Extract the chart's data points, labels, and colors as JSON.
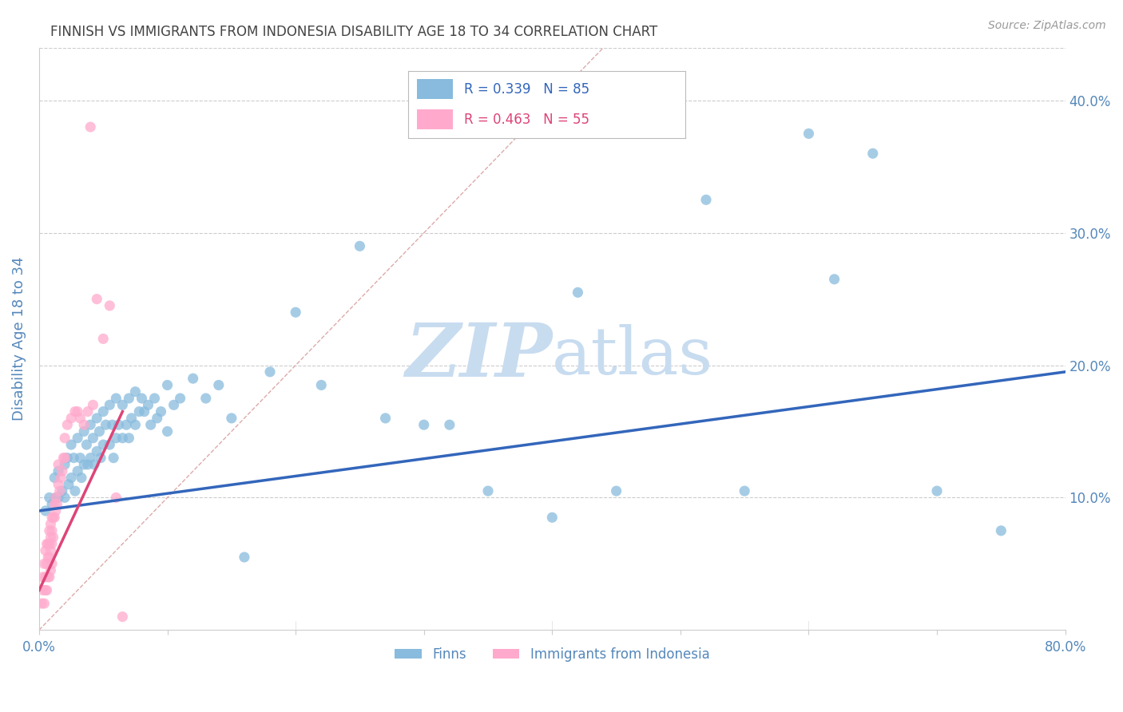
{
  "title": "FINNISH VS IMMIGRANTS FROM INDONESIA DISABILITY AGE 18 TO 34 CORRELATION CHART",
  "source": "Source: ZipAtlas.com",
  "ylabel": "Disability Age 18 to 34",
  "xlim": [
    0.0,
    0.8
  ],
  "ylim": [
    0.0,
    0.44
  ],
  "blue_color": "#88BBDD",
  "pink_color": "#FFAACC",
  "blue_line_color": "#3366BB",
  "pink_line_color": "#DD4477",
  "diag_line_color": "#DDAAAA",
  "watermark_color": "#C8DCF0",
  "background_color": "#FFFFFF",
  "grid_color": "#CCCCCC",
  "title_color": "#444444",
  "axis_label_color": "#5588BB",
  "tick_label_color": "#5588BB",
  "blue_scatter_x": [
    0.005,
    0.008,
    0.01,
    0.012,
    0.013,
    0.015,
    0.015,
    0.018,
    0.02,
    0.02,
    0.022,
    0.023,
    0.025,
    0.025,
    0.027,
    0.028,
    0.03,
    0.03,
    0.032,
    0.033,
    0.035,
    0.035,
    0.037,
    0.038,
    0.04,
    0.04,
    0.042,
    0.043,
    0.045,
    0.045,
    0.047,
    0.048,
    0.05,
    0.05,
    0.052,
    0.055,
    0.055,
    0.057,
    0.058,
    0.06,
    0.06,
    0.062,
    0.065,
    0.065,
    0.068,
    0.07,
    0.07,
    0.072,
    0.075,
    0.075,
    0.078,
    0.08,
    0.082,
    0.085,
    0.087,
    0.09,
    0.092,
    0.095,
    0.1,
    0.1,
    0.105,
    0.11,
    0.12,
    0.13,
    0.14,
    0.15,
    0.16,
    0.18,
    0.2,
    0.22,
    0.25,
    0.27,
    0.3,
    0.32,
    0.35,
    0.4,
    0.42,
    0.45,
    0.52,
    0.55,
    0.6,
    0.62,
    0.65,
    0.7,
    0.75
  ],
  "blue_scatter_y": [
    0.09,
    0.1,
    0.095,
    0.115,
    0.1,
    0.12,
    0.1,
    0.105,
    0.125,
    0.1,
    0.13,
    0.11,
    0.14,
    0.115,
    0.13,
    0.105,
    0.145,
    0.12,
    0.13,
    0.115,
    0.15,
    0.125,
    0.14,
    0.125,
    0.155,
    0.13,
    0.145,
    0.125,
    0.16,
    0.135,
    0.15,
    0.13,
    0.165,
    0.14,
    0.155,
    0.17,
    0.14,
    0.155,
    0.13,
    0.175,
    0.145,
    0.155,
    0.17,
    0.145,
    0.155,
    0.175,
    0.145,
    0.16,
    0.18,
    0.155,
    0.165,
    0.175,
    0.165,
    0.17,
    0.155,
    0.175,
    0.16,
    0.165,
    0.185,
    0.15,
    0.17,
    0.175,
    0.19,
    0.175,
    0.185,
    0.16,
    0.055,
    0.195,
    0.24,
    0.185,
    0.29,
    0.16,
    0.155,
    0.155,
    0.105,
    0.085,
    0.255,
    0.105,
    0.325,
    0.105,
    0.375,
    0.265,
    0.36,
    0.105,
    0.075
  ],
  "pink_scatter_x": [
    0.002,
    0.003,
    0.003,
    0.004,
    0.004,
    0.005,
    0.005,
    0.005,
    0.006,
    0.006,
    0.006,
    0.007,
    0.007,
    0.007,
    0.008,
    0.008,
    0.008,
    0.008,
    0.009,
    0.009,
    0.009,
    0.009,
    0.01,
    0.01,
    0.01,
    0.01,
    0.011,
    0.011,
    0.012,
    0.012,
    0.013,
    0.013,
    0.014,
    0.015,
    0.015,
    0.016,
    0.017,
    0.018,
    0.019,
    0.02,
    0.02,
    0.022,
    0.025,
    0.028,
    0.03,
    0.032,
    0.035,
    0.038,
    0.04,
    0.042,
    0.045,
    0.05,
    0.055,
    0.06,
    0.065
  ],
  "pink_scatter_y": [
    0.02,
    0.03,
    0.04,
    0.02,
    0.05,
    0.03,
    0.06,
    0.04,
    0.03,
    0.05,
    0.065,
    0.04,
    0.055,
    0.065,
    0.04,
    0.055,
    0.065,
    0.075,
    0.045,
    0.06,
    0.07,
    0.08,
    0.05,
    0.065,
    0.075,
    0.085,
    0.07,
    0.085,
    0.085,
    0.095,
    0.09,
    0.1,
    0.095,
    0.11,
    0.125,
    0.105,
    0.115,
    0.12,
    0.13,
    0.13,
    0.145,
    0.155,
    0.16,
    0.165,
    0.165,
    0.16,
    0.155,
    0.165,
    0.38,
    0.17,
    0.25,
    0.22,
    0.245,
    0.1,
    0.01
  ],
  "blue_line_x": [
    0.0,
    0.8
  ],
  "blue_line_y": [
    0.09,
    0.195
  ],
  "pink_line_x": [
    0.0,
    0.065
  ],
  "pink_line_y": [
    0.03,
    0.165
  ],
  "diag_line_x": [
    0.0,
    0.44
  ],
  "diag_line_y": [
    0.0,
    0.44
  ]
}
